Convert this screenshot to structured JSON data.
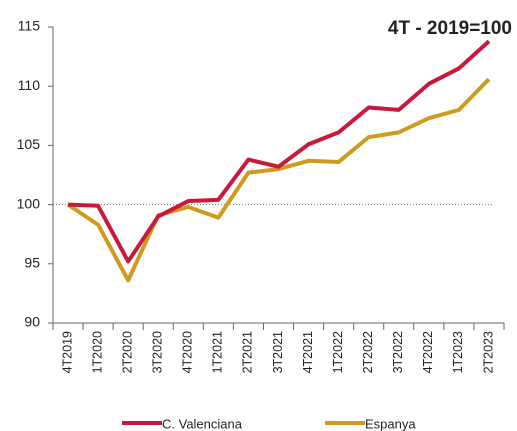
{
  "chart_data": {
    "type": "line",
    "title": "4T - 2019=100",
    "categories": [
      "4T2019",
      "1T2020",
      "2T2020",
      "3T2020",
      "4T2020",
      "1T2021",
      "2T2021",
      "3T2021",
      "4T2021",
      "1T2022",
      "2T2022",
      "3T2022",
      "4T2022",
      "1T2023",
      "2T2023"
    ],
    "series": [
      {
        "name": "C. Valenciana",
        "color": "#c8193c",
        "values": [
          100,
          99.9,
          95.2,
          99.0,
          100.3,
          100.4,
          103.8,
          103.2,
          105.1,
          106.1,
          108.2,
          108.0,
          110.2,
          111.5,
          113.8
        ]
      },
      {
        "name": "Espanya",
        "color": "#d09b1c",
        "values": [
          100,
          98.3,
          93.6,
          99.1,
          99.8,
          98.9,
          102.7,
          103.0,
          103.7,
          103.6,
          105.7,
          106.1,
          107.3,
          108.0,
          110.6
        ]
      }
    ],
    "ylim": [
      90,
      115
    ],
    "yticks": [
      90,
      95,
      100,
      105,
      110,
      115
    ],
    "reference_line": 100,
    "legend": "bottom"
  }
}
